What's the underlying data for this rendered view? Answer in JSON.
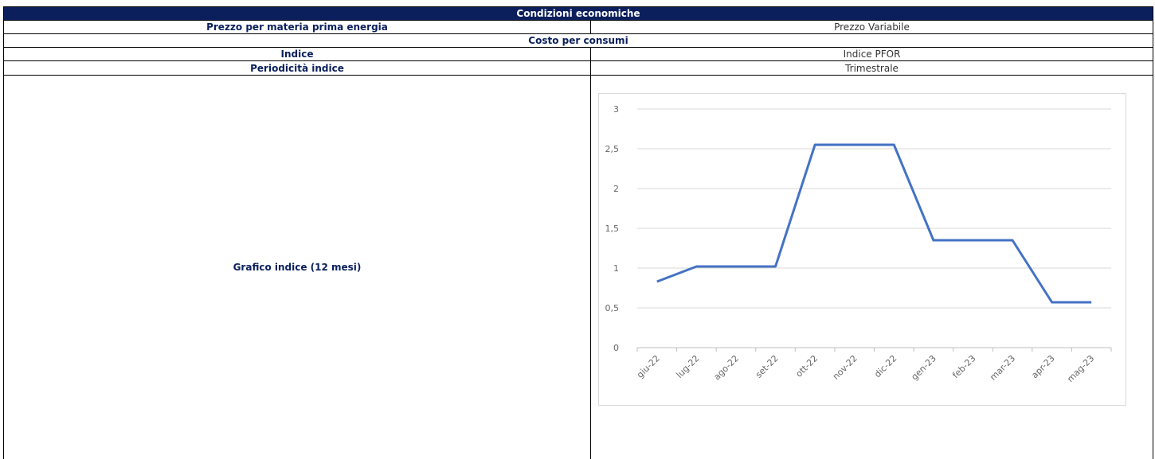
{
  "table": {
    "header": "Condizioni economiche",
    "rows": [
      [
        "Prezzo per materia prima energia",
        "Prezzo Variabile"
      ],
      [
        "Costo per consumi"
      ],
      [
        "Indice",
        "Indice PFOR"
      ],
      [
        "Periodicità indice",
        "Trimestrale"
      ],
      [
        "Grafico indice (12 mesi)"
      ]
    ]
  },
  "chart_data": {
    "type": "line",
    "categories": [
      "giu-22",
      "lug-22",
      "ago-22",
      "set-22",
      "ott-22",
      "nov-22",
      "dic-22",
      "gen-23",
      "feb-23",
      "mar-23",
      "apr-23",
      "mag-23"
    ],
    "values": [
      0.83,
      1.02,
      1.02,
      1.02,
      2.55,
      2.55,
      2.55,
      1.35,
      1.35,
      1.35,
      0.57,
      0.57
    ],
    "color": "#4472c4",
    "ylim": [
      0,
      3
    ],
    "yticks": [
      0,
      {
        "value": 0.5,
        "label": "0,5"
      },
      1,
      {
        "value": 1.5,
        "label": "1,5"
      },
      2,
      {
        "value": 2.5,
        "label": "2,5"
      },
      3
    ],
    "grid": true
  }
}
